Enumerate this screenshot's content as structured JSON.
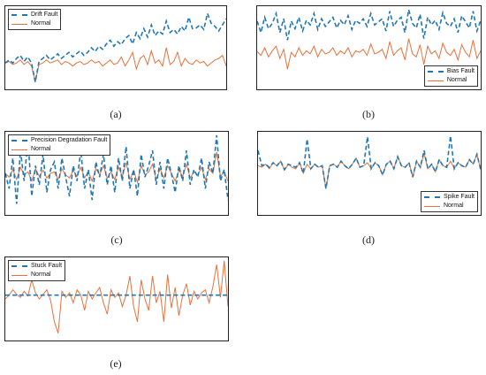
{
  "colors": {
    "fault": "#1f77b4",
    "normal": "#e8703a"
  },
  "panels": [
    {
      "caption": "(a)",
      "legend": {
        "fault": "Drift Fault",
        "normal": "Normal"
      },
      "legend_position": "top-left",
      "chart_data": {
        "type": "line",
        "legend": [
          "Drift Fault",
          "Normal"
        ],
        "series": [
          {
            "name": "Drift Fault",
            "style": "dashed",
            "values": [
              0.3,
              0.34,
              0.3,
              0.36,
              0.4,
              0.32,
              0.38,
              0.3,
              0.05,
              0.32,
              0.36,
              0.4,
              0.34,
              0.38,
              0.42,
              0.36,
              0.4,
              0.44,
              0.38,
              0.42,
              0.46,
              0.4,
              0.44,
              0.5,
              0.45,
              0.52,
              0.48,
              0.55,
              0.6,
              0.52,
              0.58,
              0.54,
              0.62,
              0.66,
              0.55,
              0.7,
              0.62,
              0.75,
              0.64,
              0.8,
              0.66,
              0.72,
              0.68,
              0.85,
              0.7,
              0.74,
              0.68,
              0.78,
              0.72,
              0.9,
              0.75,
              0.76,
              0.8,
              0.74,
              0.95,
              0.82,
              0.78,
              0.72,
              0.8,
              0.88
            ]
          },
          {
            "name": "Normal",
            "values": [
              0.3,
              0.32,
              0.28,
              0.3,
              0.34,
              0.28,
              0.32,
              0.26,
              0.05,
              0.28,
              0.3,
              0.34,
              0.3,
              0.32,
              0.34,
              0.28,
              0.32,
              0.3,
              0.26,
              0.3,
              0.32,
              0.28,
              0.3,
              0.34,
              0.3,
              0.32,
              0.26,
              0.3,
              0.34,
              0.28,
              0.3,
              0.38,
              0.26,
              0.34,
              0.44,
              0.22,
              0.36,
              0.4,
              0.28,
              0.46,
              0.3,
              0.34,
              0.26,
              0.5,
              0.28,
              0.32,
              0.44,
              0.26,
              0.36,
              0.3,
              0.28,
              0.34,
              0.3,
              0.32,
              0.26,
              0.3,
              0.34,
              0.36,
              0.4,
              0.26
            ]
          }
        ]
      }
    },
    {
      "caption": "(b)",
      "legend": {
        "fault": "Bias Fault",
        "normal": "Normal"
      },
      "legend_position": "bottom-right",
      "chart_data": {
        "type": "line",
        "legend": [
          "Bias Fault",
          "Normal"
        ],
        "series": [
          {
            "name": "Bias Fault",
            "style": "dashed",
            "values": [
              0.85,
              0.7,
              0.9,
              0.75,
              0.82,
              0.95,
              0.7,
              0.88,
              0.6,
              0.85,
              0.75,
              0.9,
              0.72,
              0.86,
              0.8,
              0.95,
              0.74,
              0.88,
              0.78,
              0.84,
              0.9,
              0.76,
              0.86,
              0.8,
              0.92,
              0.74,
              0.86,
              0.82,
              0.88,
              0.78,
              0.95,
              0.8,
              0.84,
              0.88,
              0.72,
              0.98,
              0.78,
              0.86,
              0.9,
              0.7,
              1.0,
              0.82,
              0.76,
              0.94,
              0.62,
              0.9,
              0.8,
              0.86,
              0.74,
              0.96,
              0.82,
              0.78,
              0.88,
              0.7,
              0.92,
              0.84,
              0.76,
              0.98,
              0.72,
              0.86
            ]
          },
          {
            "name": "Normal",
            "values": [
              0.45,
              0.4,
              0.5,
              0.38,
              0.46,
              0.52,
              0.36,
              0.48,
              0.22,
              0.44,
              0.38,
              0.5,
              0.4,
              0.46,
              0.42,
              0.52,
              0.38,
              0.48,
              0.42,
              0.44,
              0.5,
              0.4,
              0.46,
              0.42,
              0.5,
              0.38,
              0.46,
              0.44,
              0.48,
              0.4,
              0.55,
              0.42,
              0.44,
              0.48,
              0.36,
              0.58,
              0.4,
              0.46,
              0.5,
              0.34,
              0.62,
              0.42,
              0.38,
              0.54,
              0.28,
              0.52,
              0.42,
              0.46,
              0.36,
              0.56,
              0.44,
              0.4,
              0.48,
              0.34,
              0.54,
              0.44,
              0.38,
              0.6,
              0.36,
              0.46
            ]
          }
        ]
      }
    },
    {
      "caption": "(c)",
      "legend": {
        "fault": "Precision Degradation Fault",
        "normal": "Normal"
      },
      "legend_position": "top-left",
      "chart_data": {
        "type": "line",
        "legend": [
          "Precision Degradation Fault",
          "Normal"
        ],
        "series": [
          {
            "name": "Precision Degradation Fault",
            "style": "dashed",
            "values": [
              0.5,
              0.3,
              0.7,
              0.1,
              0.8,
              0.4,
              0.95,
              0.2,
              0.6,
              0.35,
              0.75,
              0.25,
              0.55,
              0.65,
              0.3,
              0.7,
              0.45,
              0.2,
              0.6,
              0.4,
              0.8,
              0.3,
              0.55,
              0.15,
              0.65,
              0.45,
              0.75,
              0.35,
              0.6,
              0.25,
              0.7,
              0.4,
              0.85,
              0.3,
              0.55,
              0.2,
              0.75,
              0.45,
              0.6,
              0.8,
              0.35,
              0.65,
              0.3,
              0.7,
              0.5,
              0.25,
              0.6,
              0.4,
              0.8,
              0.35,
              0.55,
              0.45,
              0.7,
              0.3,
              0.65,
              0.5,
              1.0,
              0.4,
              0.55,
              0.15
            ]
          },
          {
            "name": "Normal",
            "values": [
              0.5,
              0.45,
              0.55,
              0.42,
              0.58,
              0.48,
              0.52,
              0.4,
              0.56,
              0.46,
              0.54,
              0.44,
              0.5,
              0.52,
              0.42,
              0.56,
              0.48,
              0.44,
              0.54,
              0.46,
              0.58,
              0.44,
              0.52,
              0.4,
              0.56,
              0.48,
              0.6,
              0.44,
              0.52,
              0.42,
              0.58,
              0.46,
              0.64,
              0.42,
              0.54,
              0.38,
              0.6,
              0.48,
              0.52,
              0.62,
              0.42,
              0.56,
              0.44,
              0.6,
              0.5,
              0.4,
              0.54,
              0.46,
              0.62,
              0.44,
              0.52,
              0.48,
              0.58,
              0.42,
              0.56,
              0.5,
              0.78,
              0.46,
              0.52,
              0.4
            ]
          }
        ]
      }
    },
    {
      "caption": "(d)",
      "legend": {
        "fault": "Spike Fault",
        "normal": "Normal"
      },
      "legend_position": "bottom-right",
      "chart_data": {
        "type": "line",
        "legend": [
          "Spike Fault",
          "Normal"
        ],
        "series": [
          {
            "name": "Spike Fault",
            "style": "dashed",
            "values": [
              0.8,
              0.6,
              0.62,
              0.58,
              0.64,
              0.6,
              0.66,
              0.55,
              0.62,
              0.6,
              0.58,
              0.64,
              0.5,
              0.95,
              0.56,
              0.62,
              0.58,
              0.6,
              0.3,
              0.6,
              0.62,
              0.58,
              0.66,
              0.6,
              0.56,
              0.62,
              0.7,
              0.58,
              0.6,
              0.98,
              0.56,
              0.64,
              0.6,
              0.48,
              0.62,
              0.66,
              0.56,
              0.72,
              0.6,
              0.58,
              0.64,
              0.45,
              0.66,
              0.58,
              0.8,
              0.56,
              0.62,
              0.52,
              0.68,
              0.6,
              0.58,
              0.99,
              0.56,
              0.64,
              0.6,
              0.58,
              0.68,
              0.62,
              0.75,
              0.55
            ]
          },
          {
            "name": "Normal",
            "values": [
              0.6,
              0.58,
              0.62,
              0.56,
              0.64,
              0.6,
              0.66,
              0.54,
              0.62,
              0.58,
              0.56,
              0.64,
              0.5,
              0.62,
              0.56,
              0.62,
              0.58,
              0.6,
              0.3,
              0.6,
              0.62,
              0.58,
              0.66,
              0.6,
              0.56,
              0.62,
              0.7,
              0.58,
              0.6,
              0.64,
              0.56,
              0.64,
              0.6,
              0.48,
              0.62,
              0.66,
              0.56,
              0.72,
              0.6,
              0.58,
              0.64,
              0.45,
              0.66,
              0.58,
              0.76,
              0.56,
              0.62,
              0.52,
              0.68,
              0.6,
              0.58,
              0.66,
              0.56,
              0.64,
              0.6,
              0.58,
              0.68,
              0.62,
              0.75,
              0.55
            ]
          }
        ]
      }
    },
    {
      "caption": "(e)",
      "legend": {
        "fault": "Stuck Fault",
        "normal": "Normal"
      },
      "legend_position": "top-left",
      "chart_data": {
        "type": "line",
        "legend": [
          "Stuck Fault",
          "Normal"
        ],
        "series": [
          {
            "name": "Stuck Fault",
            "style": "dashed",
            "values": [
              0.55,
              0.55,
              0.55,
              0.55,
              0.55,
              0.55,
              0.55,
              0.55,
              0.55,
              0.55,
              0.55,
              0.55,
              0.55,
              0.55,
              0.55,
              0.55,
              0.55,
              0.55,
              0.55,
              0.55,
              0.55,
              0.55,
              0.55,
              0.55,
              0.55,
              0.55,
              0.55,
              0.55,
              0.55,
              0.55,
              0.55,
              0.55,
              0.55,
              0.55,
              0.55,
              0.55,
              0.55,
              0.55,
              0.55,
              0.55,
              0.55,
              0.55,
              0.55,
              0.55,
              0.55,
              0.55,
              0.55,
              0.55,
              0.55,
              0.55,
              0.55,
              0.55,
              0.55,
              0.55,
              0.55,
              0.55,
              0.55,
              0.55,
              0.55,
              0.55
            ]
          },
          {
            "name": "Normal",
            "values": [
              0.5,
              0.55,
              0.62,
              0.56,
              0.52,
              0.6,
              0.54,
              0.75,
              0.58,
              0.5,
              0.56,
              0.62,
              0.48,
              0.2,
              0.05,
              0.6,
              0.52,
              0.58,
              0.45,
              0.62,
              0.55,
              0.35,
              0.6,
              0.5,
              0.58,
              0.65,
              0.45,
              0.3,
              0.62,
              0.52,
              0.58,
              0.4,
              0.55,
              0.8,
              0.4,
              0.2,
              0.75,
              0.5,
              0.35,
              0.8,
              0.45,
              0.6,
              0.2,
              0.82,
              0.38,
              0.65,
              0.28,
              0.55,
              0.7,
              0.42,
              0.6,
              0.5,
              0.58,
              0.62,
              0.45,
              0.66,
              0.95,
              0.52,
              1.0,
              0.4
            ]
          }
        ]
      }
    }
  ]
}
